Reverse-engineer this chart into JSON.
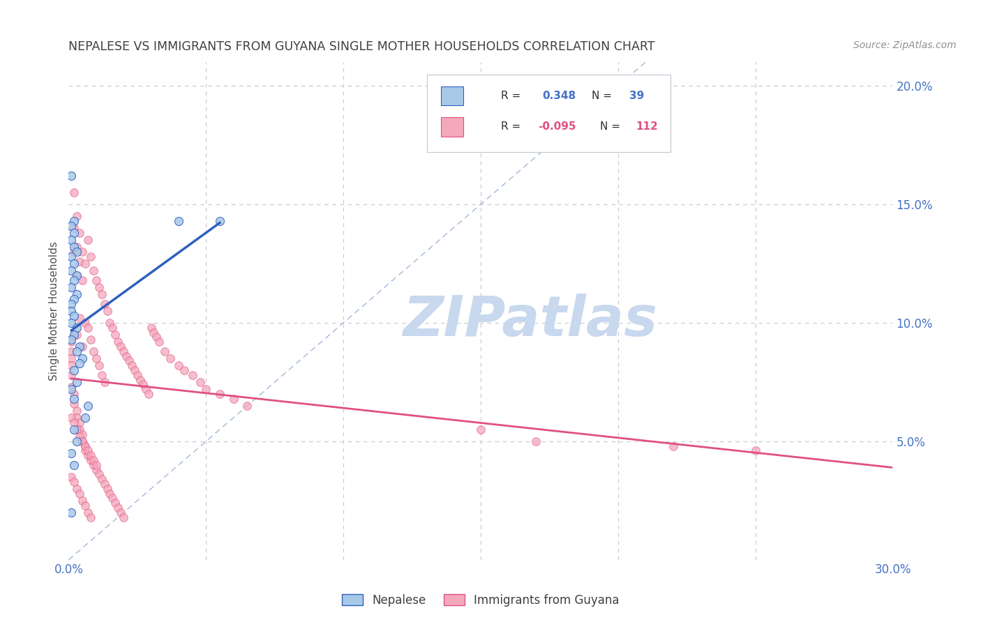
{
  "title": "NEPALESE VS IMMIGRANTS FROM GUYANA SINGLE MOTHER HOUSEHOLDS CORRELATION CHART",
  "source": "Source: ZipAtlas.com",
  "ylabel": "Single Mother Households",
  "r_nepalese": 0.348,
  "n_nepalese": 39,
  "r_guyana": -0.095,
  "n_guyana": 112,
  "color_nepalese": "#a8c8e8",
  "color_guyana": "#f4a8bc",
  "line_color_nepalese": "#3060c0",
  "line_color_guyana": "#e05080",
  "diagonal_color": "#a0b8d8",
  "watermark_text": "ZIPatlas",
  "watermark_color": "#c8d8ee",
  "legend_label_nepalese": "Nepalese",
  "legend_label_guyana": "Immigrants from Guyana",
  "background_color": "#ffffff",
  "grid_color": "#c8c8c8",
  "title_color": "#404040",
  "axis_label_color": "#4472c4",
  "xlim": [
    0.0,
    0.3
  ],
  "ylim": [
    0.0,
    0.21
  ],
  "nepalese_x": [
    0.001,
    0.002,
    0.001,
    0.002,
    0.001,
    0.002,
    0.003,
    0.001,
    0.002,
    0.001,
    0.003,
    0.002,
    0.001,
    0.003,
    0.002,
    0.001,
    0.001,
    0.002,
    0.001,
    0.003,
    0.002,
    0.001,
    0.004,
    0.003,
    0.005,
    0.004,
    0.002,
    0.003,
    0.001,
    0.002,
    0.007,
    0.006,
    0.04,
    0.055,
    0.002,
    0.003,
    0.001,
    0.002,
    0.001
  ],
  "nepalese_y": [
    0.162,
    0.143,
    0.141,
    0.138,
    0.135,
    0.132,
    0.13,
    0.128,
    0.125,
    0.122,
    0.12,
    0.118,
    0.115,
    0.112,
    0.11,
    0.108,
    0.105,
    0.103,
    0.1,
    0.098,
    0.095,
    0.093,
    0.09,
    0.088,
    0.085,
    0.083,
    0.08,
    0.075,
    0.072,
    0.068,
    0.065,
    0.06,
    0.143,
    0.143,
    0.055,
    0.05,
    0.045,
    0.04,
    0.02
  ],
  "guyana_x": [
    0.001,
    0.001,
    0.001,
    0.001,
    0.002,
    0.002,
    0.002,
    0.002,
    0.003,
    0.003,
    0.003,
    0.003,
    0.004,
    0.004,
    0.004,
    0.005,
    0.005,
    0.005,
    0.006,
    0.006,
    0.007,
    0.007,
    0.008,
    0.008,
    0.009,
    0.009,
    0.01,
    0.01,
    0.011,
    0.011,
    0.012,
    0.012,
    0.013,
    0.013,
    0.014,
    0.015,
    0.016,
    0.017,
    0.018,
    0.019,
    0.02,
    0.021,
    0.022,
    0.023,
    0.024,
    0.025,
    0.026,
    0.027,
    0.028,
    0.029,
    0.03,
    0.031,
    0.032,
    0.033,
    0.035,
    0.037,
    0.04,
    0.042,
    0.045,
    0.048,
    0.05,
    0.055,
    0.06,
    0.065,
    0.001,
    0.001,
    0.002,
    0.002,
    0.003,
    0.003,
    0.004,
    0.004,
    0.005,
    0.005,
    0.006,
    0.006,
    0.007,
    0.008,
    0.009,
    0.01,
    0.011,
    0.012,
    0.013,
    0.014,
    0.015,
    0.016,
    0.017,
    0.018,
    0.019,
    0.02,
    0.001,
    0.002,
    0.003,
    0.004,
    0.005,
    0.006,
    0.007,
    0.008,
    0.009,
    0.01,
    0.15,
    0.17,
    0.22,
    0.25,
    0.001,
    0.002,
    0.003,
    0.004,
    0.005,
    0.006,
    0.007,
    0.008
  ],
  "guyana_y": [
    0.092,
    0.088,
    0.085,
    0.082,
    0.155,
    0.14,
    0.13,
    0.095,
    0.145,
    0.132,
    0.12,
    0.095,
    0.138,
    0.126,
    0.102,
    0.13,
    0.118,
    0.09,
    0.125,
    0.1,
    0.135,
    0.098,
    0.128,
    0.093,
    0.122,
    0.088,
    0.118,
    0.085,
    0.115,
    0.082,
    0.112,
    0.078,
    0.108,
    0.075,
    0.105,
    0.1,
    0.098,
    0.095,
    0.092,
    0.09,
    0.088,
    0.086,
    0.084,
    0.082,
    0.08,
    0.078,
    0.076,
    0.074,
    0.072,
    0.07,
    0.098,
    0.096,
    0.094,
    0.092,
    0.088,
    0.085,
    0.082,
    0.08,
    0.078,
    0.075,
    0.072,
    0.07,
    0.068,
    0.065,
    0.078,
    0.073,
    0.07,
    0.066,
    0.063,
    0.06,
    0.058,
    0.055,
    0.053,
    0.05,
    0.048,
    0.046,
    0.044,
    0.042,
    0.04,
    0.038,
    0.036,
    0.034,
    0.032,
    0.03,
    0.028,
    0.026,
    0.024,
    0.022,
    0.02,
    0.018,
    0.06,
    0.058,
    0.055,
    0.052,
    0.05,
    0.048,
    0.046,
    0.044,
    0.042,
    0.04,
    0.055,
    0.05,
    0.048,
    0.046,
    0.035,
    0.033,
    0.03,
    0.028,
    0.025,
    0.023,
    0.02,
    0.018
  ]
}
